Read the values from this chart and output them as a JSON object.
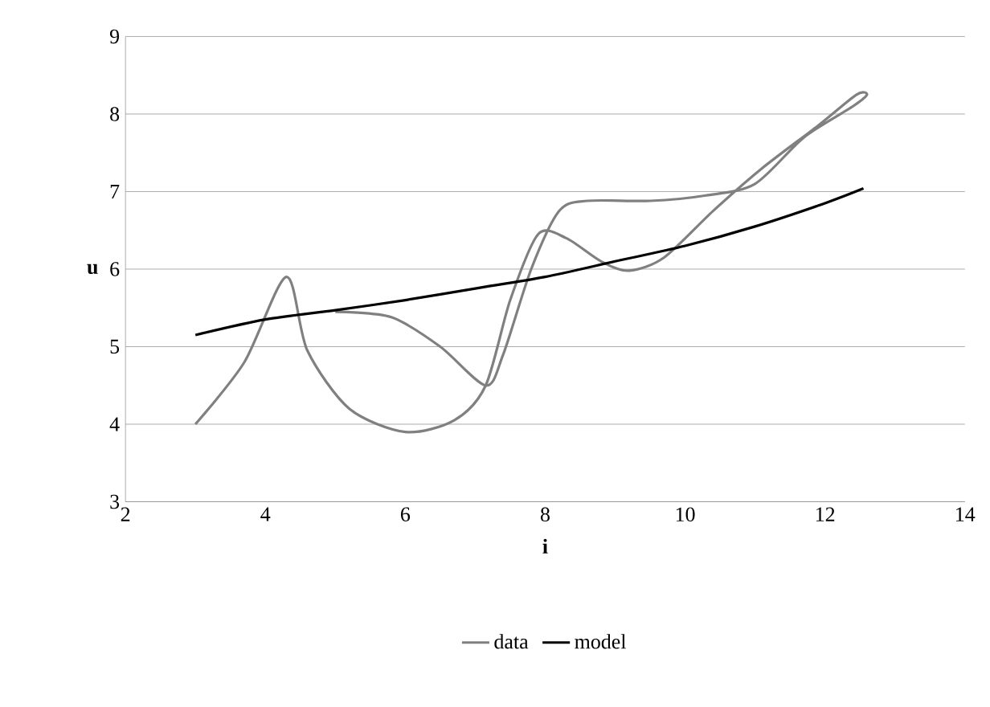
{
  "chart_data": {
    "type": "line",
    "xlabel": "i",
    "ylabel": "u",
    "xlim": [
      2,
      14
    ],
    "ylim": [
      3,
      9
    ],
    "xticks": [
      2,
      4,
      6,
      8,
      10,
      12,
      14
    ],
    "yticks": [
      3,
      4,
      5,
      6,
      7,
      8,
      9
    ],
    "grid": "y",
    "legend": "bottom",
    "marker": "none",
    "line_style": "solid",
    "series": [
      {
        "name": "data",
        "color": "#808080",
        "x": [
          3,
          3.7,
          4.3,
          4.6,
          5.2,
          6,
          6.7,
          7.15,
          7.5,
          7.9,
          8.3,
          8.8,
          9.2,
          9.7,
          10.4,
          11.1,
          11.9,
          12.45,
          12.6,
          12.4,
          11.7,
          11.0,
          10.3,
          9.5,
          8.6,
          8.2,
          7.8,
          7.4,
          7.15,
          6.5,
          5.8,
          5.0
        ],
        "values": [
          4.0,
          4.8,
          5.9,
          4.95,
          4.2,
          3.9,
          4.05,
          4.5,
          5.6,
          6.45,
          6.4,
          6.1,
          5.98,
          6.15,
          6.75,
          7.3,
          7.85,
          8.25,
          8.25,
          8.1,
          7.7,
          7.1,
          6.95,
          6.88,
          6.88,
          6.75,
          6.0,
          4.9,
          4.5,
          5.0,
          5.38,
          5.45
        ]
      },
      {
        "name": "model",
        "color": "#000000",
        "x": [
          3,
          4,
          5,
          6,
          7,
          8,
          9,
          10,
          11,
          12,
          12.55
        ],
        "values": [
          5.15,
          5.35,
          5.47,
          5.6,
          5.75,
          5.9,
          6.1,
          6.3,
          6.55,
          6.85,
          7.04
        ]
      }
    ]
  }
}
